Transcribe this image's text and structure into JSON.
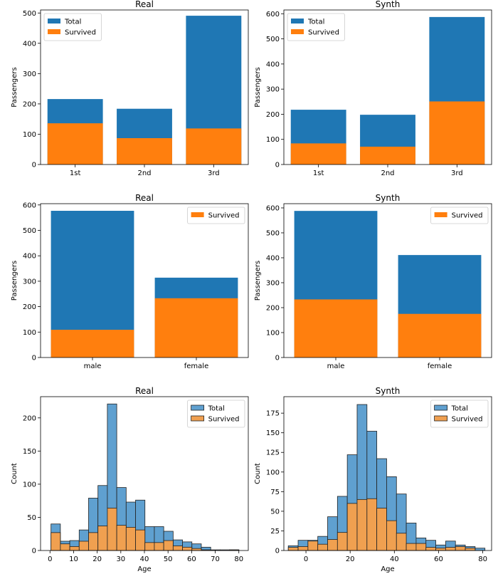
{
  "colors": {
    "total": "#1f77b4",
    "survived": "#ff7f0e",
    "hist_total": "#5fa0d0",
    "hist_survived": "#f0a050"
  },
  "chart_data": [
    {
      "type": "bar",
      "title": "Real",
      "xlabel": "",
      "ylabel": "Passengers",
      "categories": [
        "1st",
        "2nd",
        "3rd"
      ],
      "series": [
        {
          "name": "Total",
          "values": [
            216,
            184,
            491
          ]
        },
        {
          "name": "Survived",
          "values": [
            136,
            87,
            119
          ]
        }
      ],
      "ylim": [
        0,
        510
      ],
      "yticks": [
        0,
        100,
        200,
        300,
        400,
        500
      ],
      "legend": "top-left"
    },
    {
      "type": "bar",
      "title": "Synth",
      "xlabel": "",
      "ylabel": "Passengers",
      "categories": [
        "1st",
        "2nd",
        "3rd"
      ],
      "series": [
        {
          "name": "Total",
          "values": [
            218,
            198,
            587
          ]
        },
        {
          "name": "Survived",
          "values": [
            84,
            71,
            251
          ]
        }
      ],
      "ylim": [
        0,
        615
      ],
      "yticks": [
        0,
        100,
        200,
        300,
        400,
        500,
        600
      ],
      "legend": "top-left"
    },
    {
      "type": "bar",
      "title": "Real",
      "xlabel": "",
      "ylabel": "Passengers",
      "categories": [
        "male",
        "female"
      ],
      "series": [
        {
          "name": "Total",
          "values": [
            577,
            314
          ],
          "in_legend": false
        },
        {
          "name": "Survived",
          "values": [
            109,
            233
          ]
        }
      ],
      "ylim": [
        0,
        605
      ],
      "yticks": [
        0,
        100,
        200,
        300,
        400,
        500,
        600
      ],
      "legend": "top-right"
    },
    {
      "type": "bar",
      "title": "Synth",
      "xlabel": "",
      "ylabel": "Passengers",
      "categories": [
        "male",
        "female"
      ],
      "series": [
        {
          "name": "Total",
          "values": [
            588,
            411
          ],
          "in_legend": false
        },
        {
          "name": "Survived",
          "values": [
            233,
            175
          ]
        }
      ],
      "ylim": [
        0,
        617
      ],
      "yticks": [
        0,
        100,
        200,
        300,
        400,
        500,
        600
      ],
      "legend": "top-right"
    },
    {
      "type": "histogram",
      "title": "Real",
      "xlabel": "Age",
      "ylabel": "Count",
      "bin_start": 0.42,
      "bin_width": 3.98,
      "series": [
        {
          "name": "Total",
          "values": [
            40,
            14,
            15,
            31,
            79,
            98,
            221,
            95,
            73,
            76,
            36,
            36,
            29,
            16,
            13,
            10,
            5,
            1,
            1,
            1
          ]
        },
        {
          "name": "Survived",
          "values": [
            27,
            10,
            6,
            14,
            27,
            37,
            64,
            38,
            35,
            31,
            12,
            12,
            15,
            7,
            5,
            3,
            1,
            0,
            0,
            1
          ]
        }
      ],
      "xlim": [
        -4,
        84
      ],
      "ylim": [
        0,
        232
      ],
      "xticks": [
        0,
        10,
        20,
        30,
        40,
        50,
        60,
        70,
        80
      ],
      "yticks": [
        0,
        50,
        100,
        150,
        200
      ],
      "legend": "top-right"
    },
    {
      "type": "histogram",
      "title": "Synth",
      "xlabel": "Age",
      "ylabel": "Count",
      "bin_start": -8,
      "bin_width": 4.45,
      "series": [
        {
          "name": "Total",
          "values": [
            6,
            13,
            13,
            18,
            43,
            69,
            122,
            186,
            152,
            117,
            94,
            72,
            35,
            16,
            13,
            7,
            12,
            7,
            5,
            3
          ]
        },
        {
          "name": "Survived",
          "values": [
            4,
            5,
            12,
            8,
            14,
            23,
            60,
            65,
            66,
            54,
            38,
            22,
            9,
            9,
            4,
            3,
            4,
            5,
            3,
            0
          ]
        }
      ],
      "xlim": [
        -10,
        84
      ],
      "ylim": [
        0,
        196
      ],
      "xticks": [
        0,
        20,
        40,
        60,
        80
      ],
      "yticks": [
        0,
        25,
        50,
        75,
        100,
        125,
        150,
        175
      ],
      "legend": "top-right"
    }
  ]
}
